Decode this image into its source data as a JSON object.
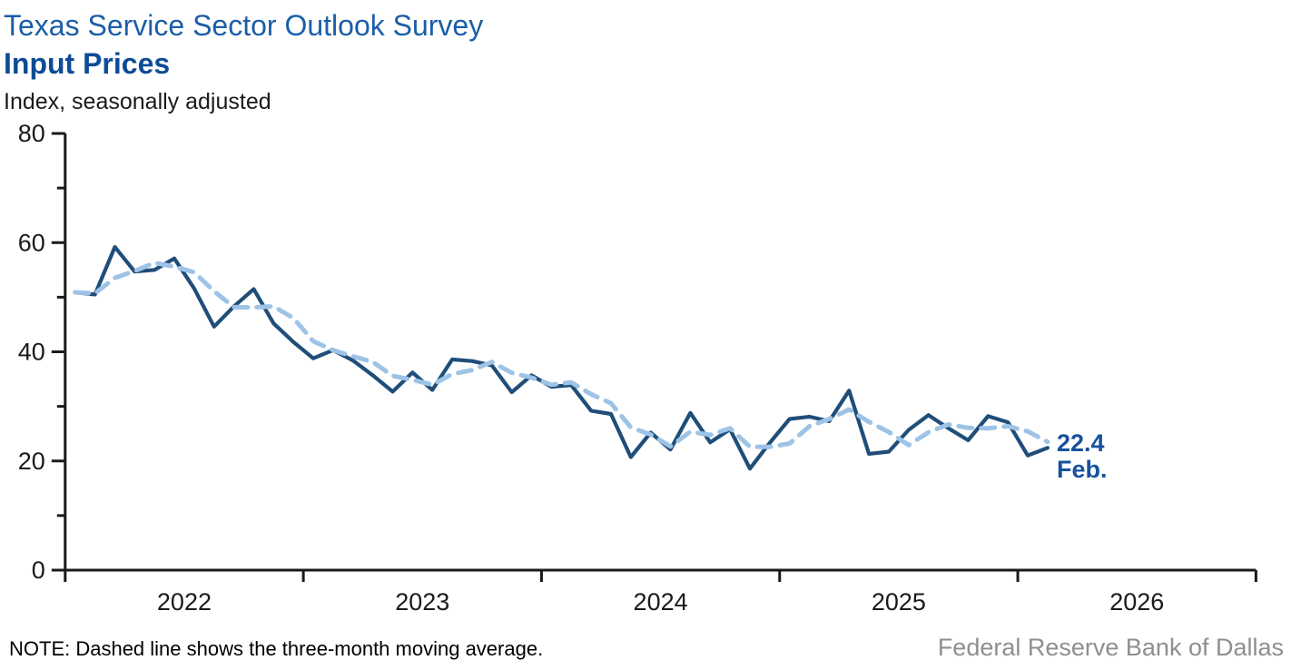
{
  "header": {
    "title": "Texas Service Sector Outlook Survey",
    "subtitle": "Input Prices",
    "units_label": "Index, seasonally adjusted"
  },
  "chart_data": {
    "type": "line",
    "title": "Texas Service Sector Outlook Survey — Input Prices",
    "xlabel": "",
    "ylabel": "Index, seasonally adjusted",
    "ylim": [
      0,
      80
    ],
    "y_ticks": [
      0,
      20,
      40,
      60,
      80
    ],
    "y_minor_ticks": [
      10,
      30,
      50,
      70
    ],
    "x_years": [
      "2022",
      "2023",
      "2024",
      "2025",
      "2026"
    ],
    "x_axis_span_months": 60,
    "start_month": "Jan 2022",
    "end_month": "Feb 2026",
    "grid": false,
    "legend": "none",
    "axis_color": "#1a1a1a",
    "series": [
      {
        "name": "Input prices index, monthly",
        "style": "solid",
        "color": "#1F4E79",
        "values": [
          50.9,
          50.5,
          59.2,
          54.7,
          55.0,
          57.1,
          51.6,
          44.6,
          48.3,
          51.5,
          45.2,
          41.8,
          38.8,
          40.3,
          38.4,
          35.7,
          32.7,
          36.2,
          33.0,
          38.6,
          38.3,
          37.5,
          32.6,
          35.7,
          33.6,
          33.9,
          29.2,
          28.6,
          20.7,
          25.2,
          22.1,
          28.8,
          23.4,
          25.8,
          18.6,
          23.3,
          27.7,
          28.1,
          27.3,
          32.9,
          21.3,
          21.7,
          25.7,
          28.4,
          26.0,
          23.8,
          28.2,
          27.1,
          21.0,
          22.4
        ]
      },
      {
        "name": "Three-month moving average",
        "style": "dashed",
        "color": "#9DC3E6",
        "derived_from": "3-month moving average of the monthly series"
      }
    ],
    "last_point": {
      "label": "22.4",
      "month_label": "Feb."
    }
  },
  "footer": {
    "note": "NOTE: Dashed line shows the three-month moving average.",
    "source": "Federal Reserve Bank of Dallas"
  }
}
